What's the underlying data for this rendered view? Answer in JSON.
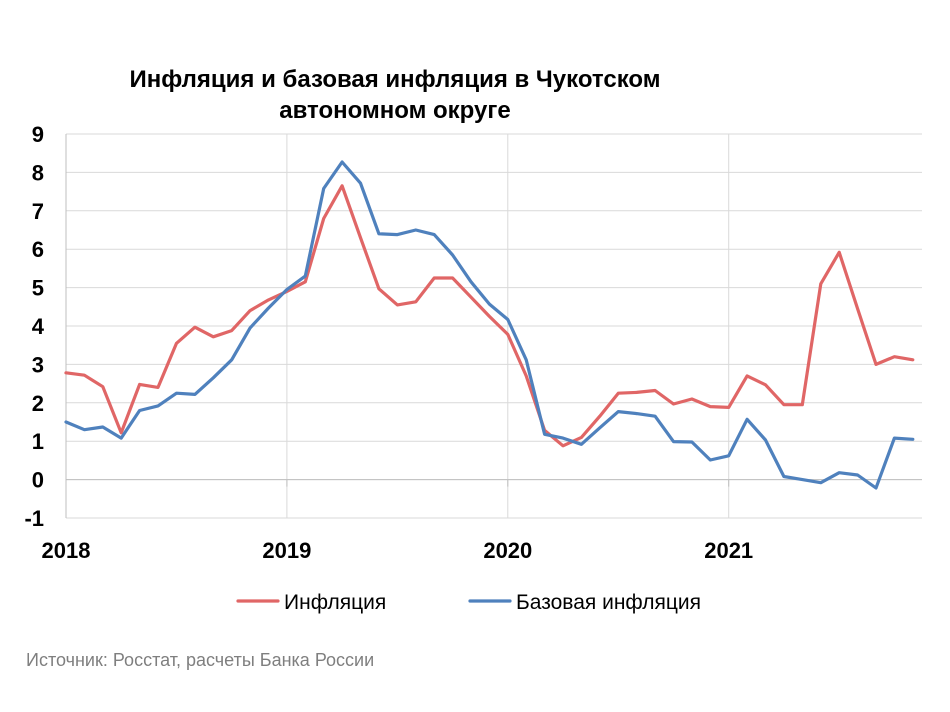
{
  "chart_data": {
    "type": "line",
    "title": "Инфляция и базовая инфляция в Чукотском автономном округе",
    "title_lines": [
      "Инфляция и базовая инфляция в Чукотском",
      "автономном округе"
    ],
    "xlabel": "",
    "ylabel": "",
    "ylim": [
      -1,
      9
    ],
    "yticks": [
      -1,
      0,
      1,
      2,
      3,
      4,
      5,
      6,
      7,
      8,
      9
    ],
    "xlim": [
      0,
      46.5
    ],
    "xtick_labels": [
      {
        "label": "2018",
        "index": 0
      },
      {
        "label": "2019",
        "index": 12
      },
      {
        "label": "2020",
        "index": 24
      },
      {
        "label": "2021",
        "index": 36
      }
    ],
    "grid": true,
    "legend_position": "bottom",
    "series": [
      {
        "name": "Инфляция",
        "color": "#e06666",
        "values": [
          2.78,
          2.72,
          2.42,
          1.22,
          2.48,
          2.4,
          3.55,
          3.97,
          3.72,
          3.88,
          4.4,
          4.68,
          4.9,
          5.15,
          6.8,
          7.65,
          6.3,
          4.97,
          4.55,
          4.63,
          5.25,
          5.25,
          4.75,
          4.25,
          3.78,
          2.7,
          1.28,
          0.88,
          1.1,
          1.65,
          2.25,
          2.27,
          2.32,
          1.97,
          2.1,
          1.9,
          1.88,
          2.7,
          2.47,
          1.95,
          1.95,
          5.1,
          5.92,
          4.45,
          3.0,
          3.2,
          3.12
        ]
      },
      {
        "name": "Базовая инфляция",
        "color": "#4f81bd",
        "values": [
          1.5,
          1.3,
          1.37,
          1.08,
          1.8,
          1.92,
          2.25,
          2.22,
          2.65,
          3.12,
          3.95,
          4.47,
          4.95,
          5.3,
          7.58,
          8.27,
          7.72,
          6.4,
          6.38,
          6.5,
          6.38,
          5.85,
          5.15,
          4.57,
          4.17,
          3.12,
          1.18,
          1.08,
          0.92,
          1.35,
          1.77,
          1.72,
          1.65,
          0.99,
          0.98,
          0.51,
          0.62,
          1.57,
          1.03,
          0.08,
          0.0,
          -0.08,
          0.18,
          0.12,
          -0.22,
          1.08,
          1.05
        ]
      }
    ]
  },
  "footer": {
    "source": "Источник: Росстат, расчеты Банка России"
  }
}
